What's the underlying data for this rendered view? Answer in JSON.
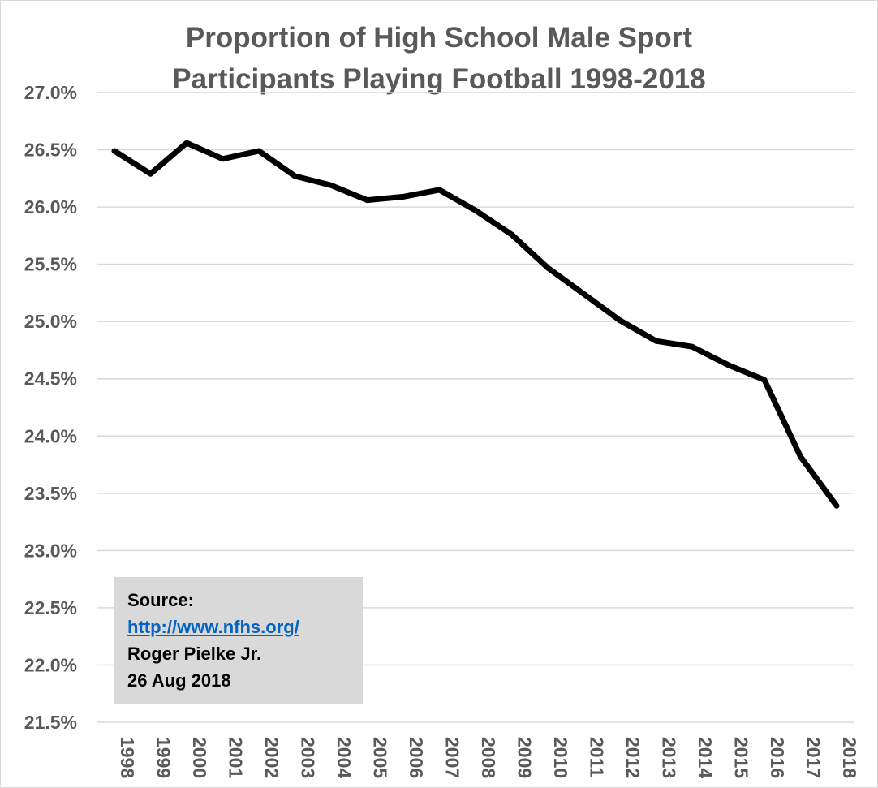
{
  "chart_data": {
    "type": "line",
    "title_lines": [
      "Proportion of High School Male Sport",
      "Participants Playing Football 1998-2018"
    ],
    "xlabel": "",
    "ylabel": "",
    "x": [
      "1998",
      "1999",
      "2000",
      "2001",
      "2002",
      "2003",
      "2004",
      "2005",
      "2006",
      "2007",
      "2008",
      "2009",
      "2010",
      "2011",
      "2012",
      "2013",
      "2014",
      "2015",
      "2016",
      "2017",
      "2018"
    ],
    "series": [
      {
        "values": [
          26.49,
          26.29,
          26.56,
          26.42,
          26.49,
          26.27,
          26.19,
          26.06,
          26.09,
          26.15,
          25.97,
          25.76,
          25.47,
          25.24,
          25.01,
          24.83,
          24.78,
          24.62,
          24.49,
          23.82,
          23.39
        ],
        "color": "#000000"
      }
    ],
    "ylim": [
      21.5,
      27.0
    ],
    "yticks": [
      27.0,
      26.5,
      26.0,
      25.5,
      25.0,
      24.5,
      24.0,
      23.5,
      23.0,
      22.5,
      22.0,
      21.5
    ],
    "ytick_labels": [
      "27.0%",
      "26.5%",
      "26.0%",
      "25.5%",
      "25.0%",
      "24.5%",
      "24.0%",
      "23.5%",
      "23.0%",
      "22.5%",
      "22.0%",
      "21.5%"
    ],
    "grid": true,
    "legend": "none"
  },
  "source_box": {
    "label": "Source:",
    "link": "http://www.nfhs.org/",
    "author": "Roger Pielke Jr.",
    "date": "26 Aug 2018"
  },
  "colors": {
    "text": "#595959",
    "grid": "#d9d9d9",
    "line": "#000000",
    "source_bg": "#d9d9d9",
    "link": "#0563c1"
  }
}
